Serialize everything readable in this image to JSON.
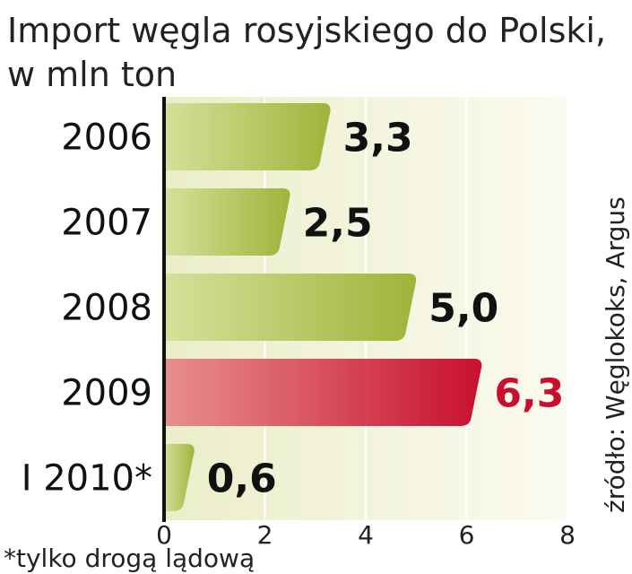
{
  "chart_data": {
    "type": "bar",
    "orientation": "horizontal",
    "title": "Import węgla rosyjskiego do Polski,",
    "subtitle": "w mln ton",
    "categories": [
      "2006",
      "2007",
      "2008",
      "2009",
      "I 2010*"
    ],
    "values": [
      3.3,
      2.5,
      5.0,
      6.3,
      0.6
    ],
    "value_labels": [
      "3,3",
      "2,5",
      "5,0",
      "6,3",
      "0,6"
    ],
    "highlight_index": 3,
    "x_ticks": [
      "0",
      "2",
      "4",
      "6",
      "8"
    ],
    "xlim": [
      0,
      8
    ],
    "grid": true,
    "source": "źródło: Węglokoks, Argus",
    "footnote": "*tylko drogą lądową",
    "colors": {
      "bar": "#9fb43a",
      "bar_light": "#d6e09a",
      "highlight": "#c8102e",
      "highlight_light": "#e88f8f",
      "background_band": "#f3f1dc"
    }
  }
}
